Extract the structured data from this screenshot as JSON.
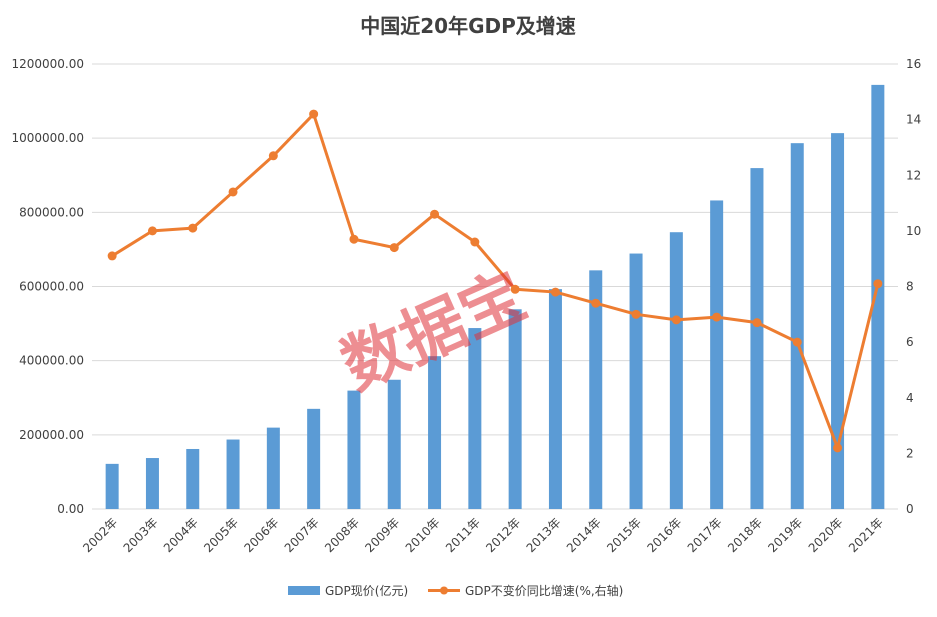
{
  "chart_data": {
    "type": "bar",
    "title": "中国近20年GDP及增速",
    "categories": [
      "2002年",
      "2003年",
      "2004年",
      "2005年",
      "2006年",
      "2007年",
      "2008年",
      "2009年",
      "2010年",
      "2011年",
      "2012年",
      "2013年",
      "2014年",
      "2015年",
      "2016年",
      "2017年",
      "2018年",
      "2019年",
      "2020年",
      "2021年"
    ],
    "series": [
      {
        "name": "GDP现价(亿元)",
        "type": "bar",
        "axis": "left",
        "color": "#5b9bd5",
        "values": [
          121717,
          137422,
          161840,
          187319,
          219439,
          270092,
          319245,
          348517,
          412119,
          487940,
          538580,
          592963,
          643563,
          688858,
          746395,
          832036,
          919281,
          986515,
          1013567,
          1143670
        ]
      },
      {
        "name": "GDP不变价同比增速(%,右轴)",
        "type": "line",
        "axis": "right",
        "color": "#ed7d31",
        "values": [
          9.1,
          10.0,
          10.1,
          11.4,
          12.7,
          14.2,
          9.7,
          9.4,
          10.6,
          9.6,
          7.9,
          7.8,
          7.4,
          7.0,
          6.8,
          6.9,
          6.7,
          6.0,
          2.2,
          8.1
        ]
      }
    ],
    "left_axis": {
      "min": 0,
      "max": 1200000,
      "ticks": [
        "0.00",
        "200000.00",
        "400000.00",
        "600000.00",
        "800000.00",
        "1000000.00",
        "1200000.00"
      ],
      "tick_values": [
        0,
        200000,
        400000,
        600000,
        800000,
        1000000,
        1200000
      ]
    },
    "right_axis": {
      "min": 0,
      "max": 16,
      "ticks": [
        "0",
        "2",
        "4",
        "6",
        "8",
        "10",
        "12",
        "14",
        "16"
      ],
      "tick_values": [
        0,
        2,
        4,
        6,
        8,
        10,
        12,
        14,
        16
      ]
    },
    "legend_position": "bottom",
    "grid": true
  },
  "watermark": "数据宝"
}
